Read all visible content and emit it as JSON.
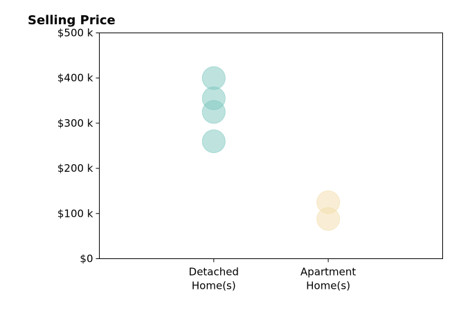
{
  "chart_data": {
    "type": "scatter",
    "title": "Selling Price",
    "xlabel": "",
    "ylabel": "",
    "categories": [
      [
        "Detached",
        "Home(s)"
      ],
      [
        "Apartment",
        "Home(s)"
      ]
    ],
    "ylim": [
      0,
      500
    ],
    "yticks": [
      {
        "value": 0,
        "label": "$0"
      },
      {
        "value": 100,
        "label": "$100 k"
      },
      {
        "value": 200,
        "label": "$200 k"
      },
      {
        "value": 300,
        "label": "$300 k"
      },
      {
        "value": 400,
        "label": "$400 k"
      },
      {
        "value": 500,
        "label": "$500 k"
      }
    ],
    "grid": false,
    "series": [
      {
        "category": 0,
        "color": "#7ec8c0",
        "values": [
          400,
          355,
          325,
          260
        ]
      },
      {
        "category": 1,
        "color": "#f3deab",
        "values": [
          125,
          88
        ]
      }
    ]
  }
}
